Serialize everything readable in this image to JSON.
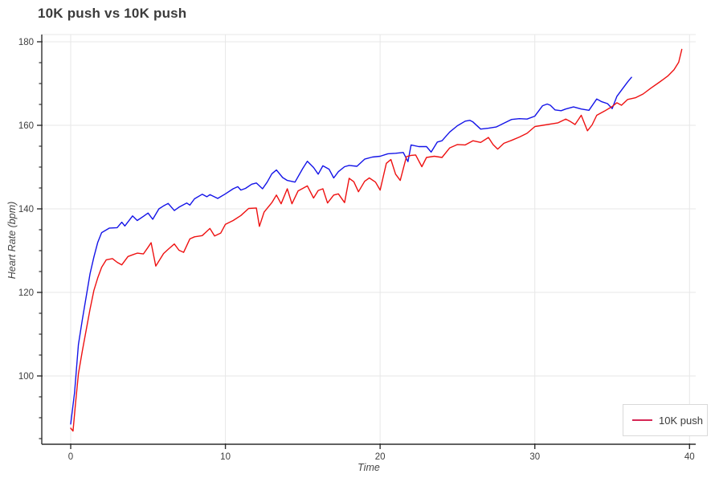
{
  "title": "10K push vs 10K push",
  "chart_data": {
    "type": "line",
    "title": "10K push vs 10K push",
    "xlabel": "Time",
    "ylabel": "Heart Rate (bpm)",
    "xlim": [
      -1.87,
      40.4
    ],
    "ylim": [
      83.65,
      181.73
    ],
    "x_ticks": [
      0,
      10,
      20,
      30,
      40
    ],
    "y_ticks": [
      100,
      120,
      140,
      160,
      180
    ],
    "y_minor_tick_step": 5,
    "grid": true,
    "grid_color": "#e7e7e7",
    "axis_color": "#2f2f2f",
    "tick_label_color": "#3f3f3f",
    "legend": {
      "position": "bottom-right",
      "entries": [
        {
          "label": "10K push",
          "color": "#d62755"
        }
      ]
    },
    "series": [
      {
        "name": "10K push",
        "color": "#1414e8",
        "x": [
          0,
          0.25,
          0.5,
          0.75,
          1,
          1.25,
          1.5,
          1.75,
          2,
          2.5,
          3,
          3.3,
          3.5,
          4,
          4.3,
          4.7,
          5,
          5.3,
          5.7,
          6,
          6.3,
          6.7,
          7,
          7.5,
          7.7,
          8,
          8.5,
          8.8,
          9,
          9.5,
          10,
          10.5,
          10.8,
          11,
          11.3,
          11.7,
          12,
          12.4,
          12.7,
          13,
          13.3,
          13.7,
          14,
          14.5,
          15,
          15.3,
          15.7,
          16,
          16.3,
          16.7,
          17,
          17.3,
          17.7,
          18,
          18.5,
          19,
          19.5,
          20,
          20.5,
          21,
          21.5,
          21.8,
          22,
          22.5,
          23,
          23.3,
          23.7,
          24,
          24.5,
          25,
          25.5,
          25.8,
          26,
          26.5,
          27,
          27.5,
          28,
          28.5,
          29,
          29.5,
          30,
          30.5,
          30.8,
          31,
          31.3,
          31.7,
          32,
          32.5,
          33,
          33.5,
          34,
          34.3,
          34.7,
          35,
          35.3,
          35.7,
          36,
          36.25
        ],
        "y": [
          88.5,
          96,
          107.5,
          113.5,
          119,
          124.5,
          128.5,
          132,
          134.3,
          135.4,
          135.5,
          136.8,
          135.9,
          138.3,
          137.2,
          138.2,
          139,
          137.5,
          140,
          140.7,
          141.3,
          139.6,
          140.4,
          141.4,
          140.9,
          142.4,
          143.5,
          142.9,
          143.4,
          142.5,
          143.6,
          144.8,
          145.3,
          144.5,
          144.9,
          145.9,
          146.2,
          144.8,
          146.4,
          148.4,
          149.3,
          147.5,
          146.8,
          146.4,
          149.7,
          151.4,
          149.9,
          148.3,
          150.3,
          149.5,
          147.4,
          148.9,
          150.1,
          150.4,
          150.2,
          151.9,
          152.4,
          152.6,
          153.2,
          153.3,
          153.5,
          151.3,
          155.3,
          154.9,
          154.9,
          153.6,
          156,
          156.3,
          158.4,
          159.9,
          161,
          161.2,
          160.8,
          159.1,
          159.3,
          159.6,
          160.5,
          161.4,
          161.6,
          161.5,
          162.2,
          164.7,
          165.1,
          164.8,
          163.7,
          163.5,
          163.9,
          164.4,
          163.9,
          163.6,
          166.3,
          165.7,
          165.2,
          164,
          166.9,
          168.9,
          170.4,
          171.5
        ]
      },
      {
        "name": "10K push",
        "color": "#ee1111",
        "x": [
          0,
          0.15,
          0.3,
          0.5,
          0.75,
          1,
          1.25,
          1.5,
          1.75,
          2,
          2.3,
          2.7,
          3,
          3.3,
          3.7,
          4,
          4.3,
          4.7,
          5,
          5.2,
          5.5,
          6,
          6.3,
          6.7,
          7,
          7.3,
          7.7,
          8,
          8.5,
          9,
          9.3,
          9.7,
          10,
          10.5,
          11,
          11.5,
          12,
          12.2,
          12.5,
          13,
          13.3,
          13.6,
          14,
          14.3,
          14.7,
          15,
          15.3,
          15.7,
          16,
          16.3,
          16.6,
          17,
          17.3,
          17.7,
          18,
          18.3,
          18.6,
          19,
          19.3,
          19.7,
          20,
          20.4,
          20.7,
          21,
          21.3,
          21.7,
          22,
          22.3,
          22.7,
          23,
          23.5,
          24,
          24.5,
          25,
          25.5,
          26,
          26.5,
          27,
          27.3,
          27.6,
          28,
          28.5,
          29,
          29.5,
          30,
          30.5,
          31,
          31.5,
          32,
          32.3,
          32.6,
          33,
          33.4,
          33.7,
          34,
          34.5,
          35,
          35.3,
          35.6,
          36,
          36.5,
          37,
          37.5,
          38,
          38.3,
          38.6,
          39,
          39.3,
          39.5
        ],
        "y": [
          87.5,
          86.8,
          93,
          100.5,
          106,
          111,
          116,
          120.5,
          123.5,
          126,
          127.8,
          128.1,
          127.2,
          126.6,
          128.6,
          129,
          129.4,
          129.2,
          130.8,
          131.9,
          126.3,
          129.3,
          130.3,
          131.6,
          130.1,
          129.6,
          132.8,
          133.3,
          133.6,
          135.3,
          133.5,
          134.2,
          136.3,
          137.2,
          138.4,
          140.1,
          140.2,
          135.8,
          139.2,
          141.5,
          143.3,
          141.2,
          144.8,
          141.2,
          144.3,
          144.9,
          145.5,
          142.6,
          144.4,
          144.8,
          141.4,
          143.3,
          143.6,
          141.5,
          147.3,
          146.5,
          144.1,
          146.6,
          147.4,
          146.4,
          144.5,
          150.9,
          151.8,
          148.3,
          146.8,
          152.5,
          152.8,
          152.9,
          150.1,
          152.3,
          152.6,
          152.3,
          154.6,
          155.4,
          155.3,
          156.3,
          155.9,
          157.1,
          155.4,
          154.3,
          155.7,
          156.4,
          157.2,
          158.1,
          159.7,
          160,
          160.3,
          160.6,
          161.5,
          160.9,
          160.2,
          162.4,
          158.7,
          160.1,
          162.4,
          163.4,
          164.5,
          165.4,
          164.8,
          166.2,
          166.6,
          167.5,
          168.9,
          170.2,
          171,
          171.8,
          173.3,
          175.1,
          178.2
        ]
      }
    ]
  }
}
